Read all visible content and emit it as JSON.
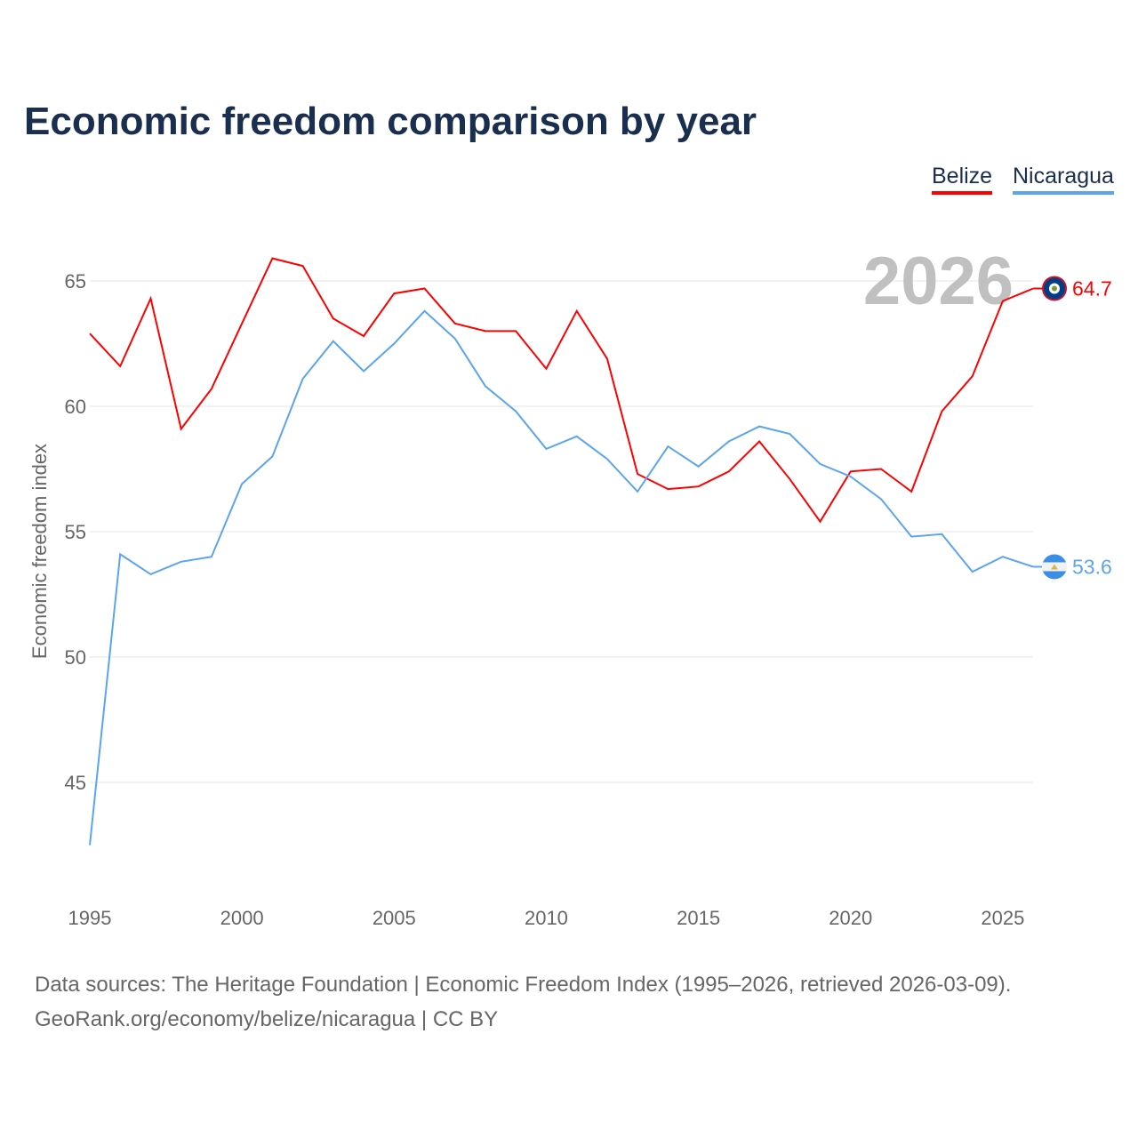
{
  "title": "Economic freedom comparison by year",
  "footer": {
    "line1": "Data sources: The Heritage Foundation | Economic Freedom Index (1995–2026, retrieved 2026-03-09).",
    "line2": "GeoRank.org/economy/belize/nicaragua | CC BY"
  },
  "chart_data": {
    "type": "line",
    "title": "Economic freedom comparison by year",
    "xlabel": "",
    "ylabel": "Economic freedom index",
    "year_watermark": "2026",
    "x": [
      1995,
      1996,
      1997,
      1998,
      1999,
      2000,
      2001,
      2002,
      2003,
      2004,
      2005,
      2006,
      2007,
      2008,
      2009,
      2010,
      2011,
      2012,
      2013,
      2014,
      2015,
      2016,
      2017,
      2018,
      2019,
      2020,
      2021,
      2022,
      2023,
      2024,
      2025,
      2026
    ],
    "xticks": [
      "1995",
      "2000",
      "2005",
      "2010",
      "2015",
      "2020",
      "2025"
    ],
    "yticks": [
      "45",
      "50",
      "55",
      "60",
      "65"
    ],
    "ylim": [
      41,
      69
    ],
    "xlim": [
      1995,
      2026
    ],
    "grid": true,
    "legend_position": "top-right",
    "series": [
      {
        "name": "Belize",
        "color": "#ff0000",
        "end_label": "64.7",
        "values": [
          62.9,
          61.6,
          64.3,
          59.1,
          60.7,
          63.3,
          65.9,
          65.6,
          63.5,
          62.8,
          64.5,
          64.7,
          63.3,
          63.0,
          63.0,
          61.5,
          63.8,
          61.9,
          57.3,
          56.7,
          56.8,
          57.4,
          58.6,
          57.1,
          55.4,
          57.4,
          57.5,
          56.6,
          59.8,
          61.2,
          64.2,
          64.7
        ]
      },
      {
        "name": "Nicaragua",
        "color": "#5ba4ee",
        "end_label": "53.6",
        "values": [
          42.5,
          54.1,
          53.3,
          53.8,
          54.0,
          56.9,
          58.0,
          61.1,
          62.6,
          61.4,
          62.5,
          63.8,
          62.7,
          60.8,
          59.8,
          58.3,
          58.8,
          57.9,
          56.6,
          58.4,
          57.6,
          58.6,
          59.2,
          58.9,
          57.7,
          57.2,
          56.3,
          54.8,
          54.9,
          53.4,
          54.0,
          53.6
        ]
      }
    ]
  }
}
